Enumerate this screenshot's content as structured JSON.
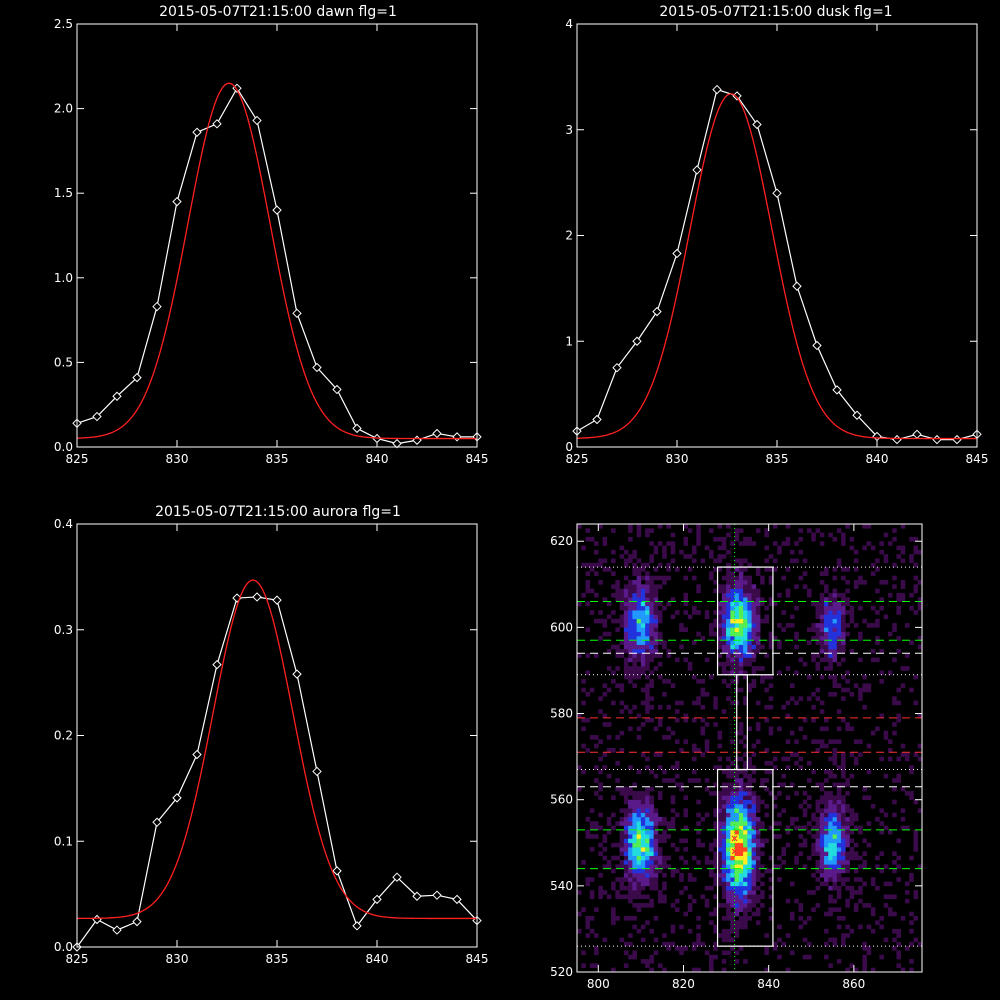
{
  "chart_data": [
    {
      "id": "dawn",
      "type": "line",
      "title": "2015-05-07T21:15:00 dawn flg=1",
      "xlim": [
        825,
        845
      ],
      "ylim": [
        0,
        2.5
      ],
      "xticks": [
        825,
        830,
        835,
        840,
        845
      ],
      "xtick_labels": [
        "825",
        "830",
        "835",
        "840",
        "845"
      ],
      "yticks": [
        0,
        0.5,
        1.0,
        1.5,
        2.0,
        2.5
      ],
      "ytick_labels": [
        "0.0",
        "0.5",
        "1.0",
        "1.5",
        "2.0",
        "2.5"
      ],
      "series": [
        {
          "style": "data",
          "color": "#ffffff",
          "marker": "diamond",
          "x": [
            825,
            826,
            827,
            828,
            829,
            830,
            831,
            832,
            833,
            834,
            835,
            836,
            837,
            838,
            839,
            840,
            841,
            842,
            843,
            844,
            845
          ],
          "y": [
            0.14,
            0.18,
            0.3,
            0.41,
            0.83,
            1.45,
            1.86,
            1.91,
            2.12,
            1.93,
            1.4,
            0.79,
            0.47,
            0.34,
            0.11,
            0.05,
            0.02,
            0.04,
            0.08,
            0.06,
            0.06
          ]
        },
        {
          "style": "fit",
          "color": "#ff2020",
          "gaussian": {
            "amplitude": 2.1,
            "center": 832.6,
            "sigma": 2.05,
            "baseline": 0.05
          }
        }
      ]
    },
    {
      "id": "dusk",
      "type": "line",
      "title": "2015-05-07T21:15:00 dusk flg=1",
      "xlim": [
        825,
        845
      ],
      "ylim": [
        0,
        4
      ],
      "xticks": [
        825,
        830,
        835,
        840,
        845
      ],
      "xtick_labels": [
        "825",
        "830",
        "835",
        "840",
        "845"
      ],
      "yticks": [
        0,
        1,
        2,
        3,
        4
      ],
      "ytick_labels": [
        "0",
        "1",
        "2",
        "3",
        "4"
      ],
      "series": [
        {
          "style": "data",
          "color": "#ffffff",
          "marker": "diamond",
          "x": [
            825,
            826,
            827,
            828,
            829,
            830,
            831,
            832,
            833,
            834,
            835,
            836,
            837,
            838,
            839,
            840,
            841,
            842,
            843,
            844,
            845
          ],
          "y": [
            0.15,
            0.26,
            0.75,
            1.0,
            1.28,
            1.83,
            2.62,
            3.38,
            3.32,
            3.05,
            2.4,
            1.52,
            0.96,
            0.54,
            0.3,
            0.1,
            0.07,
            0.12,
            0.07,
            0.07,
            0.12
          ]
        },
        {
          "style": "fit",
          "color": "#ff2020",
          "gaussian": {
            "amplitude": 3.26,
            "center": 832.7,
            "sigma": 2.05,
            "baseline": 0.08
          }
        }
      ]
    },
    {
      "id": "aurora",
      "type": "line",
      "title": "2015-05-07T21:15:00 aurora flg=1",
      "xlim": [
        825,
        845
      ],
      "ylim": [
        0,
        0.4
      ],
      "xticks": [
        825,
        830,
        835,
        840,
        845
      ],
      "xtick_labels": [
        "825",
        "830",
        "835",
        "840",
        "845"
      ],
      "yticks": [
        0,
        0.1,
        0.2,
        0.3,
        0.4
      ],
      "ytick_labels": [
        "0.0",
        "0.1",
        "0.2",
        "0.3",
        "0.4"
      ],
      "series": [
        {
          "style": "data",
          "color": "#ffffff",
          "marker": "diamond",
          "x": [
            825,
            826,
            827,
            828,
            829,
            830,
            831,
            832,
            833,
            834,
            835,
            836,
            837,
            838,
            839,
            840,
            841,
            842,
            843,
            844,
            845
          ],
          "y": [
            0.0,
            0.026,
            0.016,
            0.024,
            0.118,
            0.141,
            0.182,
            0.267,
            0.33,
            0.331,
            0.328,
            0.258,
            0.166,
            0.072,
            0.02,
            0.045,
            0.066,
            0.048,
            0.049,
            0.045,
            0.025
          ]
        },
        {
          "style": "fit",
          "color": "#ff2020",
          "gaussian": {
            "amplitude": 0.32,
            "center": 833.8,
            "sigma": 2.0,
            "baseline": 0.027
          }
        }
      ]
    },
    {
      "id": "image",
      "type": "heatmap",
      "title": "",
      "xlim": [
        795,
        876
      ],
      "ylim": [
        520,
        624
      ],
      "xticks": [
        800,
        820,
        840,
        860
      ],
      "xtick_labels": [
        "800",
        "820",
        "840",
        "860"
      ],
      "yticks": [
        520,
        540,
        560,
        580,
        600,
        620
      ],
      "ytick_labels": [
        "520",
        "540",
        "560",
        "580",
        "600",
        "620"
      ],
      "colormap": [
        "#000000",
        "#3a0a4a",
        "#5a1a8a",
        "#2233dd",
        "#2299ff",
        "#22dddd",
        "#55ee55",
        "#ffee22",
        "#ff4422"
      ],
      "blobs": [
        {
          "x": 810,
          "y": 601,
          "sx": 2.5,
          "sy": 6,
          "peak": 0.6
        },
        {
          "x": 810,
          "y": 550,
          "sx": 2.6,
          "sy": 6,
          "peak": 0.75
        },
        {
          "x": 833,
          "y": 601,
          "sx": 2.6,
          "sy": 6,
          "peak": 0.8
        },
        {
          "x": 833,
          "y": 549,
          "sx": 2.6,
          "sy": 8,
          "peak": 1.0
        },
        {
          "x": 855,
          "y": 600,
          "sx": 2.0,
          "sy": 5,
          "peak": 0.45
        },
        {
          "x": 855,
          "y": 550,
          "sx": 2.3,
          "sy": 6,
          "peak": 0.6
        }
      ],
      "vertical_line": {
        "x": 832,
        "color": "#00ff00",
        "style": "dotted"
      },
      "hlines": [
        {
          "y": 614,
          "color": "#ffffff",
          "style": "dotted"
        },
        {
          "y": 606,
          "color": "#00ff00",
          "style": "dashed"
        },
        {
          "y": 597,
          "color": "#00ff00",
          "style": "dashed"
        },
        {
          "y": 594,
          "color": "#ffffff",
          "style": "dashed"
        },
        {
          "y": 589,
          "color": "#ffffff",
          "style": "dotted"
        },
        {
          "y": 579,
          "color": "#ff3030",
          "style": "dashed"
        },
        {
          "y": 571,
          "color": "#ff3030",
          "style": "dashed"
        },
        {
          "y": 567,
          "color": "#ffffff",
          "style": "dotted"
        },
        {
          "y": 563,
          "color": "#ffffff",
          "style": "dashed"
        },
        {
          "y": 553,
          "color": "#00ff00",
          "style": "dashed"
        },
        {
          "y": 544,
          "color": "#00ff00",
          "style": "dashed"
        },
        {
          "y": 526,
          "color": "#ffffff",
          "style": "dotted"
        }
      ],
      "boxes": [
        {
          "x0": 828,
          "x1": 841,
          "y0": 589,
          "y1": 614
        },
        {
          "x0": 832.5,
          "x1": 835,
          "y0": 567,
          "y1": 589
        },
        {
          "x0": 828,
          "x1": 841,
          "y0": 526,
          "y1": 567
        }
      ],
      "markers": [
        {
          "x": 832,
          "y": 551,
          "color": "#ff3030",
          "symbol": "x"
        },
        {
          "x": 832,
          "y": 548,
          "color": "#ff3030",
          "symbol": "x"
        }
      ]
    }
  ]
}
